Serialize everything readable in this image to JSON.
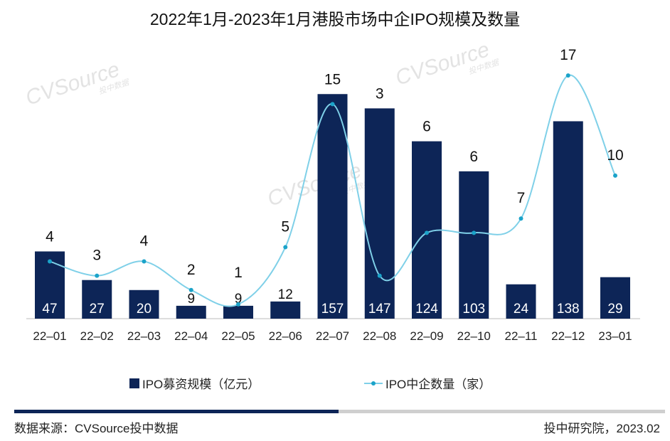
{
  "chart_data": {
    "type": "bar+line",
    "title": "2022年1月-2023年1月港股市场中企IPO规模及数量",
    "categories": [
      "22-01",
      "22-02",
      "22-03",
      "22-04",
      "22-05",
      "22-06",
      "22-07",
      "22-08",
      "22-09",
      "22-10",
      "22-11",
      "22-12",
      "23-01"
    ],
    "series": [
      {
        "name": "IPO募资规模（亿元）",
        "type": "bar",
        "color": "#0d2557",
        "values": [
          47,
          27,
          20,
          9,
          9,
          12,
          157,
          147,
          124,
          103,
          24,
          138,
          29
        ]
      },
      {
        "name": "IPO中企数量（家）",
        "type": "line",
        "color": "#7fd0e8",
        "marker_color": "#1ba3c9",
        "values": [
          4,
          3,
          4,
          2,
          1,
          5,
          15,
          3,
          6,
          6,
          7,
          17,
          10
        ]
      }
    ],
    "ylim": [
      0,
      180
    ],
    "y2lim": [
      0,
      18
    ],
    "grid": false,
    "legend": "bottom"
  },
  "watermark": {
    "brand": "CVSource",
    "sub": "投中数据"
  },
  "footer": {
    "source": "数据来源：CVSource投中数据",
    "credit": "投中研究院，2023.02"
  }
}
